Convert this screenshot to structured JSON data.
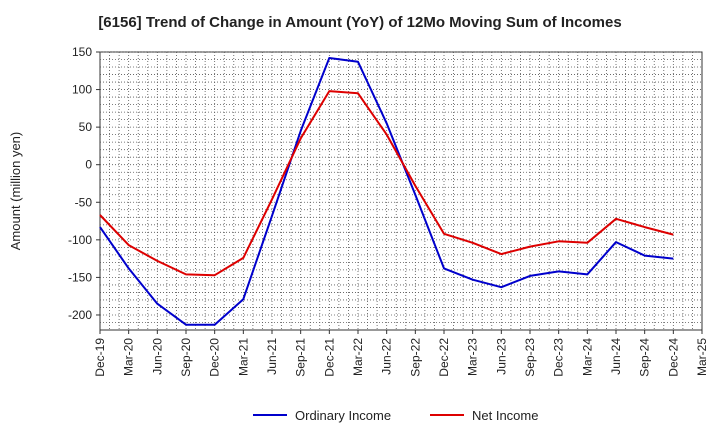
{
  "chart_data": {
    "type": "line",
    "title": "[6156]  Trend of Change in Amount (YoY) of 12Mo Moving Sum of Incomes",
    "xlabel": "",
    "ylabel": "Amount (million yen)",
    "ylim": [
      -220,
      150
    ],
    "y_ticks": [
      150,
      100,
      50,
      0,
      -50,
      -100,
      -150,
      -200
    ],
    "x_ticks": [
      "Dec-19",
      "Mar-20",
      "Jun-20",
      "Sep-20",
      "Dec-20",
      "Mar-21",
      "Jun-21",
      "Sep-21",
      "Dec-21",
      "Mar-22",
      "Jun-22",
      "Sep-22",
      "Dec-22",
      "Mar-23",
      "Jun-23",
      "Sep-23",
      "Dec-23",
      "Mar-24",
      "Jun-24",
      "Sep-24",
      "Dec-24",
      "Mar-25"
    ],
    "grid": true,
    "legend_position": "bottom",
    "series": [
      {
        "name": "Ordinary Income",
        "color": "#0000cc",
        "values": [
          -83,
          -138,
          -185,
          -213,
          -213,
          -179,
          -68,
          45,
          142,
          137,
          55,
          -40,
          -138,
          -153,
          -163,
          -148,
          -142,
          -146,
          -103,
          -121,
          -125
        ]
      },
      {
        "name": "Net Income",
        "color": "#dd0000",
        "values": [
          -67,
          -107,
          -128,
          -146,
          -147,
          -124,
          -46,
          35,
          98,
          95,
          40,
          -28,
          -92,
          -104,
          -119,
          -109,
          -102,
          -104,
          -72,
          -83,
          -93
        ]
      }
    ]
  }
}
